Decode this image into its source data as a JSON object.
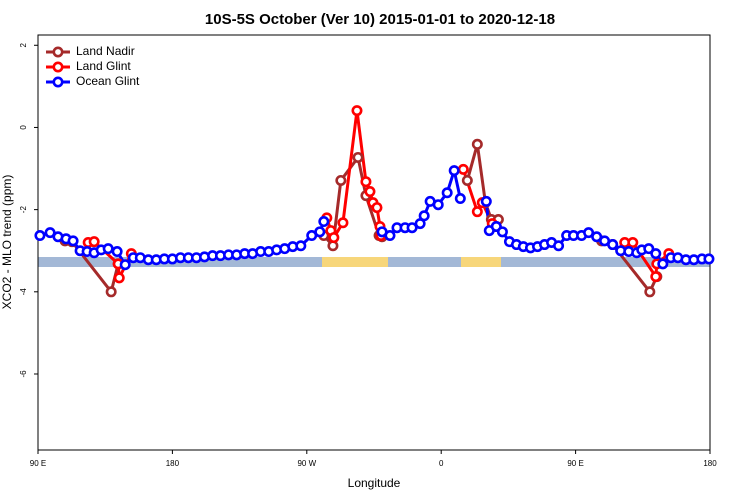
{
  "chart_data": {
    "type": "line",
    "title": "10S-5S October (Ver 10)   2015-01-01 to 2020-12-18",
    "x_label": "Longitude",
    "y_label": "XCO2 - MLO trend (ppm)",
    "xlim": [
      90,
      540
    ],
    "ylim": [
      -7.85,
      2.25
    ],
    "xticks": [
      {
        "value": 90,
        "label": "90 E"
      },
      180,
      {
        "value": 270,
        "label": "90 W"
      },
      {
        "value": 360,
        "label": "0"
      },
      {
        "value": 450,
        "label": "90 E"
      },
      {
        "value": 540,
        "label": "180"
      }
    ],
    "yticks": [
      2,
      0,
      -2,
      -4,
      -6
    ],
    "legend": "top-left",
    "series": [
      {
        "name": "Land Nadir",
        "color": "#a52a2a",
        "x": [
          108.1,
          112.8,
          139,
          143.7,
          200,
          281.4,
          287.5,
          292.8,
          304.3,
          309.6,
          318.4,
          320.4,
          340,
          377.5,
          384.2,
          389.6,
          393.6,
          398.3,
          450,
          467.4,
          474.8,
          499.7,
          504.4
        ],
        "values": [
          -2.76,
          -2.78,
          -4.0,
          -3.32,
          null,
          -2.63,
          -2.88,
          -1.29,
          -0.73,
          -1.66,
          -2.63,
          -2.66,
          null,
          -1.29,
          -0.41,
          -1.83,
          -2.24,
          -2.24,
          null,
          -2.76,
          -2.85,
          -4.0,
          -3.63
        ]
      },
      {
        "name": "Land Glint",
        "color": "#ff0000",
        "x": [
          123.6,
          127.6,
          143.7,
          144.4,
          152.5,
          200,
          283.4,
          286.1,
          288.1,
          294.2,
          303.6,
          309.6,
          312.3,
          314.3,
          317,
          319,
          319.7,
          340,
          374.8,
          384.2,
          387.5,
          394.2,
          396.9,
          450,
          482.9,
          488.3,
          503.7,
          504.4,
          512.4
        ],
        "values": [
          -2.8,
          -2.78,
          -3.32,
          -3.66,
          -3.07,
          null,
          -2.2,
          -2.51,
          -2.68,
          -2.32,
          0.41,
          -1.32,
          -1.56,
          -1.83,
          -1.95,
          -2.41,
          -2.63,
          null,
          -1.02,
          -2.05,
          -1.83,
          -2.34,
          -2.41,
          null,
          -2.8,
          -2.8,
          -3.63,
          -3.32,
          -3.07
        ]
      },
      {
        "name": "Ocean Glint",
        "color": "#0000ff",
        "x": [
          91.3,
          98.1,
          103.4,
          108.8,
          113.5,
          118.2,
          122.9,
          127.6,
          132.3,
          137,
          143,
          148.4,
          153.8,
          158.5,
          163.9,
          169.2,
          174.6,
          180,
          185.4,
          190.7,
          196.1,
          201.5,
          206.9,
          212.2,
          217.6,
          223,
          228.4,
          233.7,
          239.1,
          244.5,
          249.8,
          255.2,
          260.6,
          266,
          273.3,
          278.7,
          281.4,
          300,
          320.4,
          325.7,
          330.4,
          335.8,
          340.5,
          345.9,
          348.6,
          352.6,
          358,
          364,
          368.7,
          372.8,
          381,
          390.2,
          392.2,
          396.9,
          401,
          405.7,
          410.4,
          415,
          419.8,
          424.5,
          429.2,
          433.9,
          438.6,
          444,
          448.6,
          454,
          458.7,
          464.1,
          469.4,
          474.8,
          480.2,
          485.6,
          490.9,
          494.3,
          499,
          503.7,
          508.4,
          513.8,
          518.5,
          523.9,
          529.2,
          534.6,
          539.3
        ],
        "values": [
          -2.63,
          -2.56,
          -2.66,
          -2.71,
          -2.76,
          -3.0,
          -3.02,
          -3.05,
          -2.98,
          -2.95,
          -3.02,
          -3.34,
          -3.17,
          -3.17,
          -3.22,
          -3.22,
          -3.2,
          -3.2,
          -3.17,
          -3.17,
          -3.17,
          -3.15,
          -3.12,
          -3.12,
          -3.1,
          -3.1,
          -3.07,
          -3.07,
          -3.02,
          -3.02,
          -2.98,
          -2.95,
          -2.9,
          -2.88,
          -2.63,
          -2.54,
          -2.29,
          null,
          -2.54,
          -2.63,
          -2.44,
          -2.44,
          -2.44,
          -2.34,
          -2.15,
          -1.8,
          -1.88,
          -1.59,
          -1.05,
          -1.73,
          null,
          -1.8,
          -2.51,
          -2.41,
          -2.54,
          -2.78,
          -2.85,
          -2.9,
          -2.93,
          -2.9,
          -2.85,
          -2.8,
          -2.88,
          -2.63,
          -2.63,
          -2.63,
          -2.56,
          -2.66,
          -2.76,
          -2.85,
          -3.0,
          -3.02,
          -3.05,
          -2.98,
          -2.95,
          -3.07,
          -3.32,
          -3.17,
          -3.17,
          -3.22,
          -3.22,
          -3.2,
          -3.2
        ]
      }
    ]
  }
}
